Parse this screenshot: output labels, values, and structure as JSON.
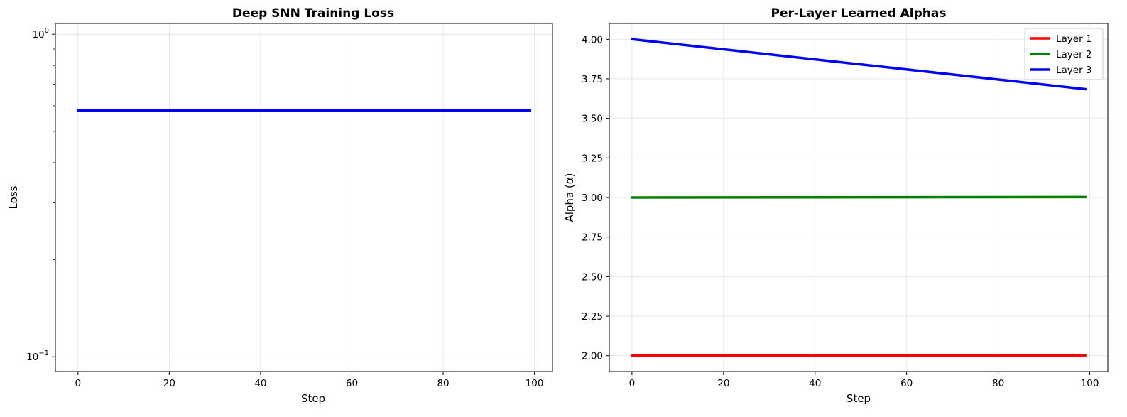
{
  "chart_data": [
    {
      "type": "line",
      "title": "Deep SNN Training Loss",
      "xlabel": "Step",
      "ylabel": "Loss",
      "yscale": "log",
      "xlim": [
        -4.95,
        103.95
      ],
      "ylim": [
        0.09,
        1.08
      ],
      "xticks": [
        0,
        20,
        40,
        60,
        80,
        100
      ],
      "xtick_labels": [
        "0",
        "20",
        "40",
        "60",
        "80",
        "100"
      ],
      "yticks": [
        0.1,
        1
      ],
      "ytick_labels": [
        {
          "base": "10",
          "exp": "−1"
        },
        {
          "base": "10",
          "exp": "0"
        }
      ],
      "grid": true,
      "legend": null,
      "series": [
        {
          "color": "#0000ff",
          "x": [
            0,
            99
          ],
          "y": [
            0.58,
            0.58
          ]
        }
      ]
    },
    {
      "type": "line",
      "title": "Per-Layer Learned Alphas",
      "xlabel": "Step",
      "ylabel": "Alpha (α)",
      "yscale": "linear",
      "xlim": [
        -4.95,
        103.95
      ],
      "ylim": [
        1.9,
        4.1
      ],
      "xticks": [
        0,
        20,
        40,
        60,
        80,
        100
      ],
      "xtick_labels": [
        "0",
        "20",
        "40",
        "60",
        "80",
        "100"
      ],
      "yticks": [
        2.0,
        2.25,
        2.5,
        2.75,
        3.0,
        3.25,
        3.5,
        3.75,
        4.0
      ],
      "ytick_labels": [
        "2.00",
        "2.25",
        "2.50",
        "2.75",
        "3.00",
        "3.25",
        "3.50",
        "3.75",
        "4.00"
      ],
      "grid": true,
      "legend": "top-right",
      "series": [
        {
          "name": "Layer 1",
          "color": "#ff0000",
          "x": [
            0,
            99
          ],
          "y": [
            2.0,
            2.0
          ]
        },
        {
          "name": "Layer 2",
          "color": "#008000",
          "x": [
            0,
            99
          ],
          "y": [
            3.0,
            3.003
          ]
        },
        {
          "name": "Layer 3",
          "color": "#0000ff",
          "x": [
            0,
            99
          ],
          "y": [
            4.0,
            3.685
          ]
        }
      ]
    }
  ]
}
